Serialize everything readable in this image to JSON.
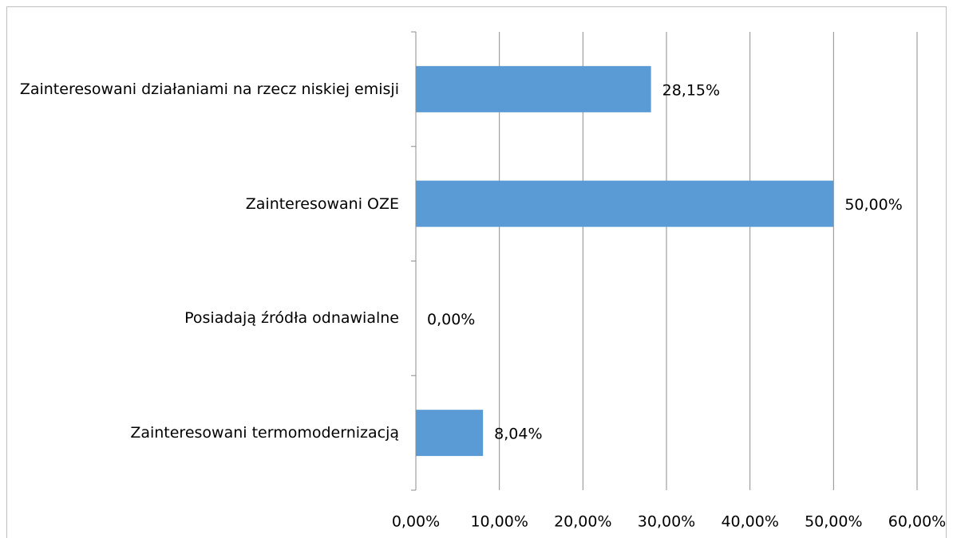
{
  "chart_data": {
    "type": "bar",
    "orientation": "horizontal",
    "categories": [
      "Zainteresowani działaniami na rzecz niskiej emisji",
      "Zainteresowani OZE",
      "Posiadają źródła odnawialne",
      "Zainteresowani termomodernizacją"
    ],
    "values": [
      28.15,
      50,
      0,
      8.04
    ],
    "value_labels": [
      "28,15%",
      "50,00%",
      "0,00%",
      "8,04%"
    ],
    "color": "#5b9bd5",
    "xlim": [
      0,
      60
    ],
    "xticks": [
      {
        "value": 0,
        "label": "0,00%"
      },
      {
        "value": 10,
        "label": "10,00%"
      },
      {
        "value": 20,
        "label": "20,00%"
      },
      {
        "value": 30,
        "label": "30,00%"
      },
      {
        "value": 40,
        "label": "40,00%"
      },
      {
        "value": 50,
        "label": "50,00%"
      },
      {
        "value": 60,
        "label": "60,00%"
      }
    ],
    "grid": true
  }
}
